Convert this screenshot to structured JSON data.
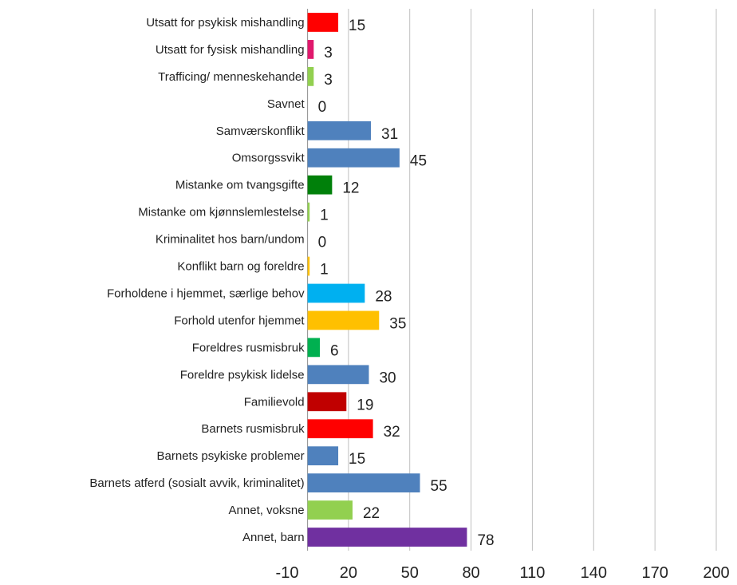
{
  "chart_data": {
    "type": "bar",
    "orientation": "horizontal",
    "title": "",
    "xlabel": "",
    "ylabel": "",
    "xlim": [
      -10,
      200
    ],
    "x_ticks": [
      "-10",
      "20",
      "50",
      "80",
      "110",
      "140",
      "170",
      "200"
    ],
    "grid": true,
    "legend": "none",
    "categories": [
      "Utsatt for psykisk mishandling",
      "Utsatt for fysisk mishandling",
      "Trafficing/ menneskehandel",
      "Savnet",
      "Samværskonflikt",
      "Omsorgssvikt",
      "Mistanke om tvangsgifte",
      "Mistanke om kjønnslemlestelse",
      "Kriminalitet hos barn/undom",
      "Konflikt barn og foreldre",
      "Forholdene i hjemmet, særlige behov",
      "Forhold utenfor hjemmet",
      "Foreldres rusmisbruk",
      "Foreldre psykisk lidelse",
      "Familievold",
      "Barnets rusmisbruk",
      "Barnets psykiske problemer",
      "Barnets atferd (sosialt avvik, kriminalitet)",
      "Annet, voksne",
      "Annet, barn"
    ],
    "values": [
      15,
      3,
      3,
      0,
      31,
      45,
      12,
      1,
      0,
      1,
      28,
      35,
      6,
      30,
      19,
      32,
      15,
      55,
      22,
      78
    ],
    "colors": [
      "#ff0000",
      "#e0186c",
      "#92d050",
      "#4f81bd",
      "#4f81bd",
      "#4f81bd",
      "#00800a",
      "#92d050",
      "#4f81bd",
      "#ffc000",
      "#00b0f0",
      "#ffc000",
      "#00b050",
      "#4f81bd",
      "#c00000",
      "#ff0000",
      "#4f81bd",
      "#4f81bd",
      "#92d050",
      "#7030a0"
    ]
  }
}
